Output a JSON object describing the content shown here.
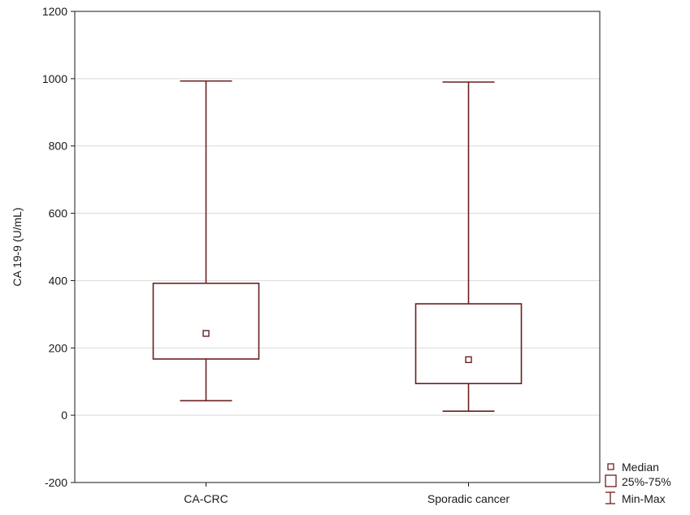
{
  "chart_data": {
    "type": "box",
    "ylabel": "CA 19-9 (U/mL)",
    "xlabel": "",
    "ylim": [
      -200,
      1200
    ],
    "yticks": [
      -200,
      0,
      200,
      400,
      600,
      800,
      1000,
      1200
    ],
    "grid": true,
    "categories": [
      "CA-CRC",
      "Sporadic cancer"
    ],
    "boxes": [
      {
        "category": "CA-CRC",
        "min": 43,
        "q1": 167,
        "median": 243,
        "q3": 392,
        "max": 993
      },
      {
        "category": "Sporadic cancer",
        "min": 12,
        "q1": 94,
        "median": 165,
        "q3": 331,
        "max": 990
      }
    ],
    "legend": {
      "position": "bottom-right",
      "items": [
        {
          "label": "Median",
          "symbol": "small-square"
        },
        {
          "label": "25%-75%",
          "symbol": "box"
        },
        {
          "label": "Min-Max",
          "symbol": "whisker"
        }
      ]
    },
    "colors": {
      "box": "#6b1f1f",
      "grid": "#d9d9d9",
      "axis": "#1a1a1a"
    }
  }
}
